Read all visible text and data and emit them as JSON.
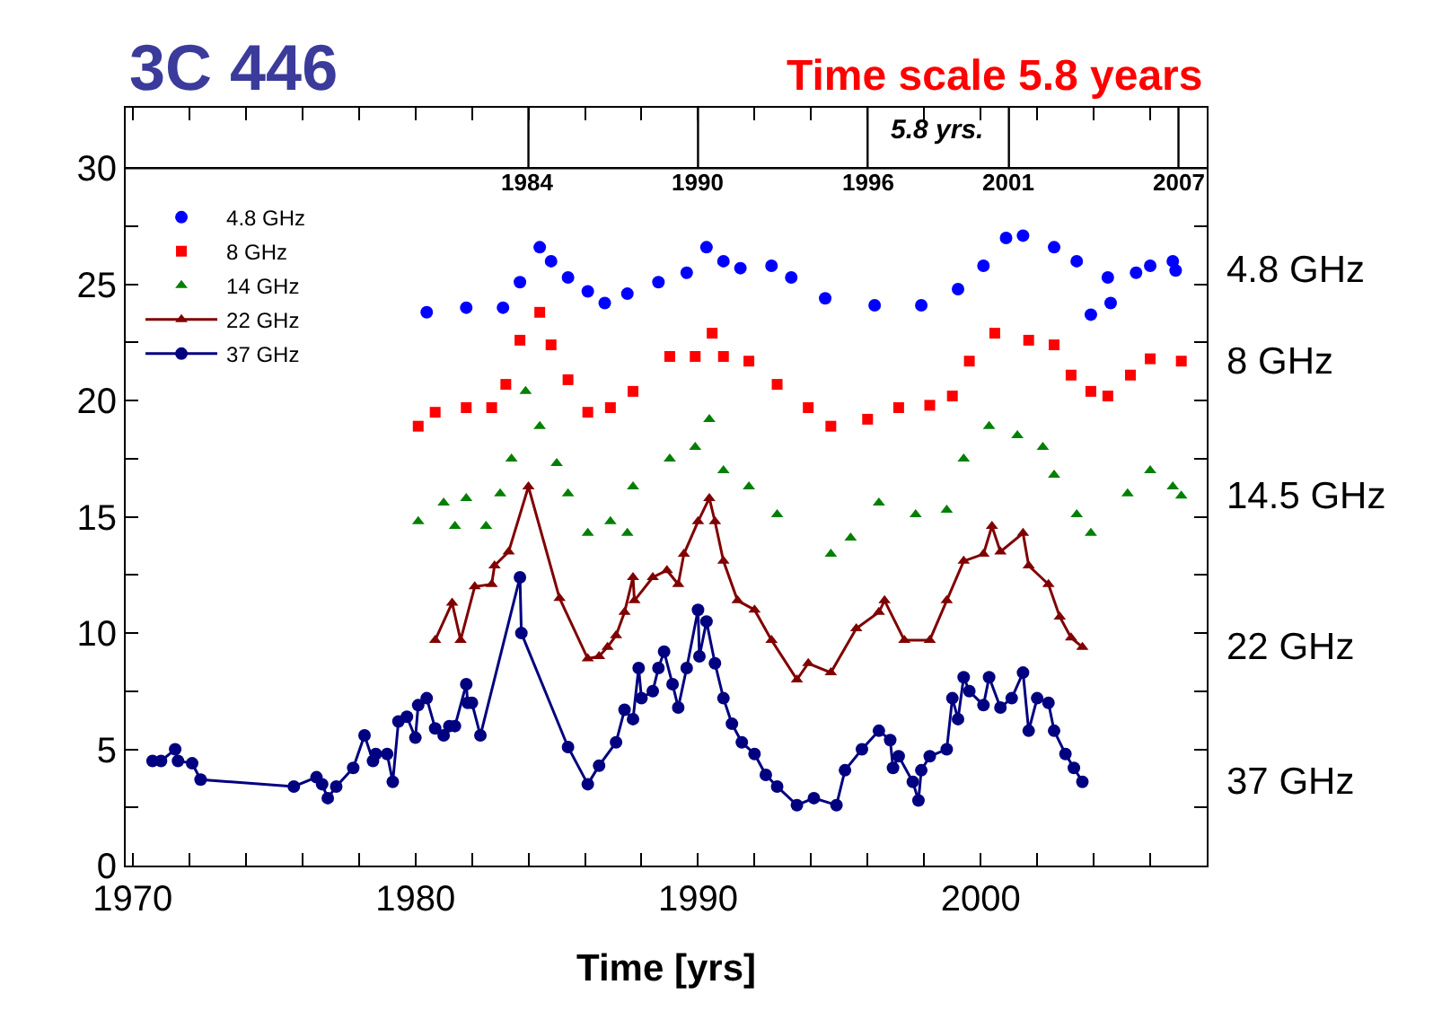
{
  "chart_data": {
    "type": "scatter",
    "title": "3C 446",
    "subtitle": "Time scale 5.8 years",
    "xlabel": "Time [yrs]",
    "xlim": [
      1969.75,
      2008.0
    ],
    "ylim": [
      0,
      32.6
    ],
    "xticks": [
      1970,
      {
        "value": 1972,
        "label": null
      },
      {
        "value": 1974,
        "label": null
      },
      {
        "value": 1976,
        "label": null
      },
      {
        "value": 1978,
        "label": null
      },
      1980,
      {
        "value": 1982,
        "label": null
      },
      {
        "value": 1984,
        "label": null
      },
      {
        "value": 1986,
        "label": null
      },
      {
        "value": 1988,
        "label": null
      },
      1990,
      {
        "value": 1992,
        "label": null
      },
      {
        "value": 1994,
        "label": null
      },
      {
        "value": 1996,
        "label": null
      },
      {
        "value": 1998,
        "label": null
      },
      2000,
      {
        "value": 2002,
        "label": null
      },
      {
        "value": 2004,
        "label": null
      },
      {
        "value": 2006,
        "label": null
      }
    ],
    "yticks": [
      0,
      {
        "value": 2.5,
        "label": null
      },
      5,
      {
        "value": 7.5,
        "label": null
      },
      10,
      {
        "value": 12.5,
        "label": null
      },
      15,
      {
        "value": 17.5,
        "label": null
      },
      20,
      {
        "value": 22.5,
        "label": null
      },
      25,
      {
        "value": 27.5,
        "label": null
      },
      30
    ],
    "legend": "top left",
    "ref_lines": [
      {
        "axis": "y",
        "value": 30,
        "label": null,
        "color": "#000000"
      },
      {
        "axis": "x",
        "value": 1984,
        "label": "1984",
        "color": "#000000"
      },
      {
        "axis": "x",
        "value": 1990,
        "label": "1990",
        "color": "#000000"
      },
      {
        "axis": "x",
        "value": 1996,
        "label": "1996",
        "color": "#000000"
      },
      {
        "axis": "x",
        "value": 2001,
        "label": "2001",
        "color": "#000000"
      },
      {
        "axis": "x",
        "value": 2007,
        "label": "2007",
        "color": "#000000"
      }
    ],
    "annotations": [
      "4.8 GHz",
      "8 GHz",
      "14.5 GHz",
      "22 GHz",
      "37 GHz",
      "5.8 yrs."
    ],
    "series": [
      {
        "name": "4.8 GHz",
        "marker": "circle",
        "color": "#0000ff",
        "x": [
          1980.4,
          1981.8,
          1983.1,
          1983.7,
          1984.4,
          1984.8,
          1985.4,
          1986.1,
          1986.7,
          1987.5,
          1988.6,
          1989.6,
          1990.3,
          1990.9,
          1991.5,
          1992.6,
          1993.3,
          1994.5,
          1996.25,
          1997.9,
          1999.2,
          2000.1,
          2000.9,
          2001.5,
          2002.6,
          2003.4,
          2003.9,
          2004.5,
          2004.6,
          2005.5,
          2006.0,
          2006.8,
          2006.9
        ],
        "values": [
          23.8,
          24.0,
          24.0,
          25.1,
          26.6,
          26.0,
          25.3,
          24.7,
          24.2,
          24.6,
          25.1,
          25.5,
          26.6,
          26.0,
          25.7,
          25.8,
          25.3,
          24.4,
          24.1,
          24.1,
          24.8,
          25.8,
          27.0,
          27.1,
          26.6,
          26.0,
          23.7,
          25.3,
          24.2,
          25.5,
          25.8,
          26.0,
          25.6
        ]
      },
      {
        "name": "8 GHz",
        "marker": "square",
        "color": "#ff0000",
        "x": [
          1980.1,
          1980.7,
          1981.8,
          1982.7,
          1983.2,
          1983.7,
          1984.4,
          1984.8,
          1985.4,
          1986.1,
          1986.9,
          1987.7,
          1989.0,
          1989.9,
          1990.5,
          1990.9,
          1991.8,
          1992.8,
          1993.9,
          1994.7,
          1996.0,
          1997.1,
          1998.2,
          1999.0,
          1999.6,
          2000.5,
          2001.7,
          2002.6,
          2003.2,
          2003.9,
          2004.5,
          2005.3,
          2006.0,
          2007.1
        ],
        "values": [
          18.9,
          19.5,
          19.7,
          19.7,
          20.7,
          22.6,
          23.8,
          22.4,
          20.9,
          19.5,
          19.7,
          20.4,
          21.9,
          21.9,
          22.9,
          21.9,
          21.7,
          20.7,
          19.7,
          18.9,
          19.2,
          19.7,
          19.8,
          20.2,
          21.7,
          22.9,
          22.6,
          22.4,
          21.1,
          20.4,
          20.2,
          21.1,
          21.8,
          21.7
        ]
      },
      {
        "name": "14 GHz",
        "marker": "triangle",
        "color": "#008000",
        "x": [
          1980.1,
          1981.0,
          1981.4,
          1981.8,
          1982.5,
          1983.0,
          1983.4,
          1983.9,
          1984.4,
          1985.0,
          1985.4,
          1986.1,
          1986.9,
          1987.5,
          1987.7,
          1989.0,
          1989.9,
          1990.4,
          1990.9,
          1991.8,
          1992.8,
          1994.7,
          1995.4,
          1996.4,
          1997.7,
          1998.8,
          1999.4,
          2000.3,
          2001.3,
          2002.2,
          2002.6,
          2003.4,
          2003.9,
          2005.2,
          2006.0,
          2006.8,
          2007.1
        ],
        "values": [
          14.8,
          15.6,
          14.6,
          15.8,
          14.6,
          16.0,
          17.5,
          20.4,
          18.9,
          17.3,
          16.0,
          14.3,
          14.8,
          14.3,
          16.3,
          17.5,
          18.0,
          19.2,
          17.0,
          16.3,
          15.1,
          13.4,
          14.1,
          15.6,
          15.1,
          15.3,
          17.5,
          18.9,
          18.5,
          18.0,
          16.8,
          15.1,
          14.3,
          16.0,
          17.0,
          16.3,
          15.9
        ]
      },
      {
        "name": "22 GHz",
        "type": "line",
        "marker": "triangle",
        "color": "#800000",
        "x": [
          1980.7,
          1981.3,
          1981.6,
          1982.1,
          1982.7,
          1982.8,
          1983.3,
          1984.0,
          1985.1,
          1986.1,
          1986.5,
          1986.8,
          1987.1,
          1987.4,
          1987.7,
          1987.75,
          1988.4,
          1988.9,
          1989.3,
          1989.5,
          1990.0,
          1990.4,
          1990.6,
          1990.9,
          1991.4,
          1992.0,
          1992.6,
          1993.5,
          1993.9,
          1994.7,
          1995.6,
          1996.4,
          1996.6,
          1997.3,
          1998.2,
          1998.8,
          1999.4,
          2000.1,
          2000.4,
          2000.7,
          2001.5,
          2001.7,
          2002.4,
          2002.8,
          2003.2,
          2003.6
        ],
        "values": [
          9.7,
          11.3,
          9.7,
          12.0,
          12.1,
          12.9,
          13.5,
          16.3,
          11.5,
          8.9,
          9.0,
          9.4,
          9.9,
          10.9,
          12.4,
          11.4,
          12.4,
          12.7,
          12.1,
          13.4,
          14.8,
          15.8,
          14.8,
          13.1,
          11.4,
          11.0,
          9.7,
          8.0,
          8.7,
          8.3,
          10.2,
          10.9,
          11.4,
          9.7,
          9.7,
          11.4,
          13.1,
          13.4,
          14.6,
          13.5,
          14.3,
          12.9,
          12.1,
          10.7,
          9.8,
          9.4
        ]
      },
      {
        "name": "37 GHz",
        "type": "line",
        "marker": "circle",
        "color": "#000080",
        "x": [
          1970.7,
          1971.0,
          1971.5,
          1971.6,
          1972.1,
          1972.4,
          1975.7,
          1976.5,
          1976.7,
          1976.9,
          1977.2,
          1977.8,
          1978.2,
          1978.5,
          1978.6,
          1979.0,
          1979.2,
          1979.4,
          1979.7,
          1980.0,
          1980.1,
          1980.4,
          1980.7,
          1981.0,
          1981.2,
          1981.4,
          1981.8,
          1981.85,
          1982.0,
          1982.3,
          1983.7,
          1983.75,
          1985.4,
          1986.1,
          1986.5,
          1987.1,
          1987.4,
          1987.7,
          1987.9,
          1988.0,
          1988.4,
          1988.6,
          1988.8,
          1989.1,
          1989.3,
          1989.6,
          1990.0,
          1990.05,
          1990.3,
          1990.6,
          1990.9,
          1991.2,
          1991.55,
          1992.0,
          1992.4,
          1992.8,
          1993.5,
          1994.1,
          1994.9,
          1995.2,
          1995.8,
          1996.4,
          1996.8,
          1996.9,
          1997.1,
          1997.6,
          1997.8,
          1997.9,
          1998.2,
          1998.8,
          1999.0,
          1999.2,
          1999.4,
          1999.6,
          2000.1,
          2000.3,
          2000.7,
          2001.1,
          2001.5,
          2001.7,
          2002.0,
          2002.4,
          2002.6,
          2003.0,
          2003.3,
          2003.6
        ],
        "values": [
          4.5,
          4.5,
          5.0,
          4.5,
          4.4,
          3.7,
          3.4,
          3.8,
          3.5,
          2.9,
          3.4,
          4.2,
          5.6,
          4.5,
          4.8,
          4.8,
          3.6,
          6.2,
          6.4,
          5.5,
          6.9,
          7.2,
          5.9,
          5.6,
          6.0,
          6.0,
          7.8,
          7.0,
          7.0,
          5.6,
          12.4,
          10.0,
          5.1,
          3.5,
          4.3,
          5.3,
          6.7,
          6.3,
          8.5,
          7.2,
          7.5,
          8.5,
          9.2,
          7.8,
          6.8,
          8.5,
          11.0,
          9.0,
          10.5,
          8.7,
          7.2,
          6.1,
          5.3,
          4.8,
          3.9,
          3.4,
          2.6,
          2.9,
          2.6,
          4.1,
          5.0,
          5.8,
          5.4,
          4.2,
          4.7,
          3.6,
          2.8,
          4.1,
          4.7,
          5.0,
          7.2,
          6.3,
          8.1,
          7.5,
          6.9,
          8.1,
          6.8,
          7.2,
          8.3,
          5.8,
          7.2,
          7.0,
          5.8,
          4.8,
          4.2,
          3.6
        ]
      }
    ]
  }
}
